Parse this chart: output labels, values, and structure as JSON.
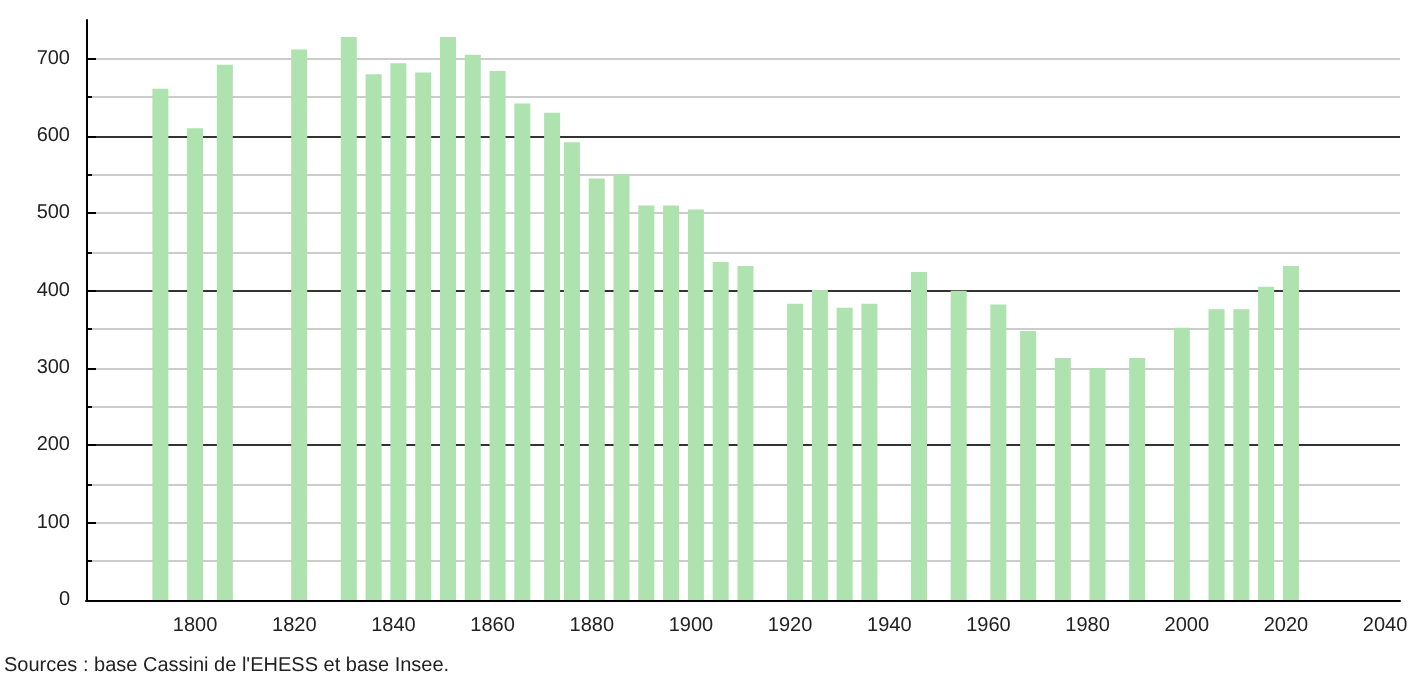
{
  "chart_data": {
    "type": "bar",
    "x": [
      1793,
      1800,
      1806,
      1821,
      1831,
      1836,
      1841,
      1846,
      1851,
      1856,
      1861,
      1866,
      1872,
      1876,
      1881,
      1886,
      1891,
      1896,
      1901,
      1906,
      1911,
      1921,
      1926,
      1931,
      1936,
      1946,
      1954,
      1962,
      1968,
      1975,
      1982,
      1990,
      1999,
      2006,
      2011,
      2016,
      2021
    ],
    "values": [
      661,
      610,
      692,
      712,
      728,
      680,
      694,
      682,
      728,
      705,
      684,
      642,
      630,
      592,
      545,
      550,
      510,
      510,
      505,
      437,
      432,
      383,
      401,
      378,
      383,
      424,
      400,
      382,
      348,
      313,
      300,
      313,
      352,
      376,
      376,
      405,
      432
    ],
    "color": "#aee2ae",
    "xlim": [
      1778,
      2043
    ],
    "xticks": [
      1800,
      1820,
      1840,
      1860,
      1880,
      1900,
      1920,
      1940,
      1960,
      1980,
      2000,
      2020,
      2040
    ],
    "ylim": [
      0,
      750
    ],
    "yticks": [
      0,
      100,
      200,
      300,
      400,
      500,
      600,
      700
    ],
    "grid": "y",
    "annotations": [
      "Sources : base Cassini de l'EHESS et base Insee."
    ]
  }
}
